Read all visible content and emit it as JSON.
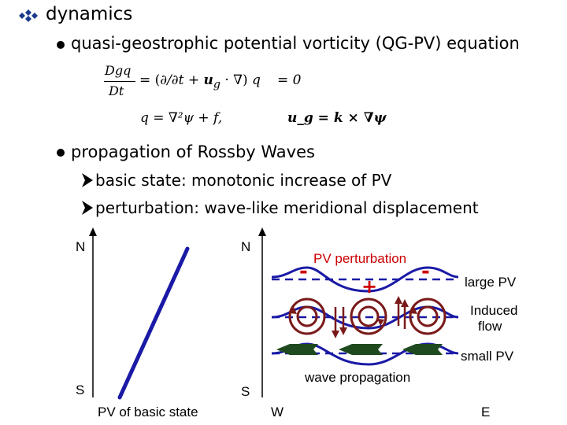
{
  "slide": {
    "heading": "dynamics",
    "bullet1": "quasi-geostrophic potential vorticity (QG-PV) equation",
    "bullet2": "propagation of Rossby Waves",
    "sub1": "basic state: monotonic increase of PV",
    "sub2": "perturbation: wave-like meridional displacement",
    "heading_marker_icon": "diamond-cluster-icon",
    "bullet_icon": "filled-circle-icon",
    "sub_bullet_icon": "arrow-triangle-icon"
  },
  "equations": {
    "eq1_lhs_num": "Dgq",
    "eq1_lhs_den": "Dt",
    "eq1_rhs": "= 0",
    "eq2": "q = ∇²ψ + f,",
    "eq3": "u_g = k × ∇ψ"
  },
  "left_plot": {
    "north_label": "N",
    "south_label": "S",
    "xlabel": "PV of basic state"
  },
  "right_plot": {
    "north_label": "N",
    "south_label": "S",
    "west_label": "W",
    "east_label": "E",
    "pv_perturbation_label": "PV perturbation",
    "large_pv_label": "large PV",
    "induced_flow_label_1": "Induced",
    "induced_flow_label_2": "flow",
    "small_pv_label": "small PV",
    "wave_propagation_label": "wave propagation",
    "minus_sign": "-",
    "plus_sign": "+",
    "colors": {
      "wave": "#1a1aa6",
      "perturbation_sign": "#cc0000",
      "vortex": "#7a1a1a",
      "propagation_arrow": "#1f4a1f"
    }
  }
}
